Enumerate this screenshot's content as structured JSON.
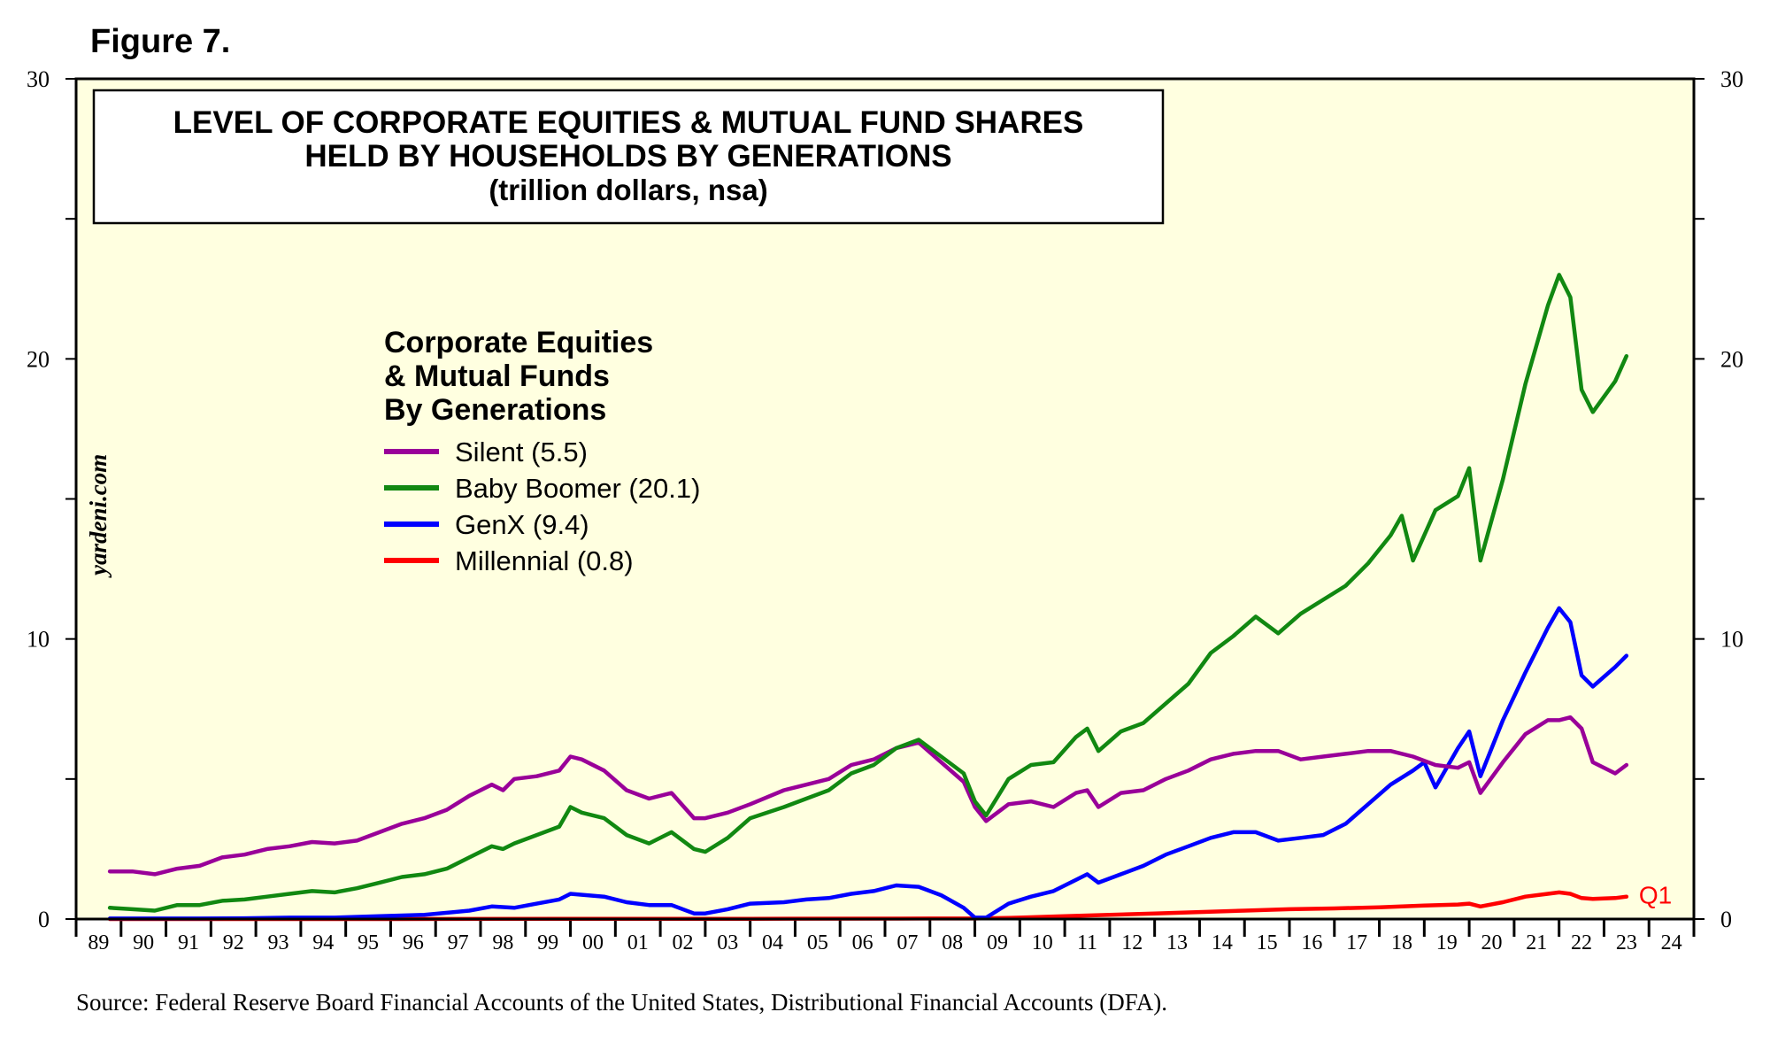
{
  "figure_label": "Figure 7.",
  "source": "Source: Federal Reserve Board Financial Accounts of the United States, Distributional Financial Accounts (DFA).",
  "watermark": "yardeni.com",
  "colors": {
    "background": "#ffffe0",
    "silent": "#990099",
    "baby_boomer": "#118811",
    "genx": "#0000ff",
    "millennial": "#ff0000"
  },
  "chart_data": {
    "type": "line",
    "title_lines": [
      "LEVEL OF CORPORATE EQUITIES & MUTUAL FUND SHARES",
      "HELD BY HOUSEHOLDS BY GENERATIONS",
      "(trillion dollars, nsa)"
    ],
    "legend_title_lines": [
      "Corporate Equities",
      "& Mutual Funds",
      "By Generations"
    ],
    "legend_position": "upper-left",
    "ylim": [
      0,
      30
    ],
    "y_ticks": [
      0,
      10,
      20,
      30
    ],
    "y_tick_labels": [
      "0",
      "10",
      "20",
      "30"
    ],
    "x_range": [
      1989,
      2025
    ],
    "x_tick_labels": [
      "89",
      "90",
      "91",
      "92",
      "93",
      "94",
      "95",
      "96",
      "97",
      "98",
      "99",
      "00",
      "01",
      "02",
      "03",
      "04",
      "05",
      "06",
      "07",
      "08",
      "09",
      "10",
      "11",
      "12",
      "13",
      "14",
      "15",
      "16",
      "17",
      "18",
      "19",
      "20",
      "21",
      "22",
      "23",
      "24"
    ],
    "end_annotation": "Q1",
    "series": [
      {
        "name": "Silent",
        "legend_label": "Silent (5.5)",
        "color": "#990099",
        "x": [
          1989.75,
          1990.25,
          1990.75,
          1991.25,
          1991.75,
          1992.25,
          1992.75,
          1993.25,
          1993.75,
          1994.25,
          1994.75,
          1995.25,
          1995.75,
          1996.25,
          1996.75,
          1997.25,
          1997.75,
          1998.25,
          1998.5,
          1998.75,
          1999.25,
          1999.75,
          2000.0,
          2000.25,
          2000.75,
          2001.25,
          2001.75,
          2002.25,
          2002.75,
          2003.0,
          2003.5,
          2004.0,
          2004.75,
          2005.25,
          2005.75,
          2006.25,
          2006.75,
          2007.25,
          2007.75,
          2008.25,
          2008.75,
          2009.0,
          2009.25,
          2009.75,
          2010.25,
          2010.75,
          2011.25,
          2011.5,
          2011.75,
          2012.25,
          2012.75,
          2013.25,
          2013.75,
          2014.25,
          2014.75,
          2015.25,
          2015.75,
          2016.25,
          2016.75,
          2017.25,
          2017.75,
          2018.25,
          2018.75,
          2019.25,
          2019.75,
          2020.0,
          2020.25,
          2020.75,
          2021.25,
          2021.75,
          2022.0,
          2022.25,
          2022.5,
          2022.75,
          2023.25,
          2023.5
        ],
        "values": [
          1.7,
          1.7,
          1.6,
          1.8,
          1.9,
          2.2,
          2.3,
          2.5,
          2.6,
          2.75,
          2.7,
          2.8,
          3.1,
          3.4,
          3.6,
          3.9,
          4.4,
          4.8,
          4.6,
          5.0,
          5.1,
          5.3,
          5.8,
          5.7,
          5.3,
          4.6,
          4.3,
          4.5,
          3.6,
          3.6,
          3.8,
          4.1,
          4.6,
          4.8,
          5.0,
          5.5,
          5.7,
          6.1,
          6.3,
          5.6,
          4.9,
          4.0,
          3.5,
          4.1,
          4.2,
          4.0,
          4.5,
          4.6,
          4.0,
          4.5,
          4.6,
          5.0,
          5.3,
          5.7,
          5.9,
          6.0,
          6.0,
          5.7,
          5.8,
          5.9,
          6.0,
          6.0,
          5.8,
          5.5,
          5.4,
          5.6,
          4.5,
          5.6,
          6.6,
          7.1,
          7.1,
          7.2,
          6.8,
          5.6,
          5.2,
          5.5
        ]
      },
      {
        "name": "Baby Boomer",
        "legend_label": "Baby Boomer (20.1)",
        "color": "#118811",
        "x": [
          1989.75,
          1990.25,
          1990.75,
          1991.25,
          1991.75,
          1992.25,
          1992.75,
          1993.25,
          1993.75,
          1994.25,
          1994.75,
          1995.25,
          1995.75,
          1996.25,
          1996.75,
          1997.25,
          1997.75,
          1998.25,
          1998.5,
          1998.75,
          1999.25,
          1999.75,
          2000.0,
          2000.25,
          2000.75,
          2001.25,
          2001.75,
          2002.25,
          2002.75,
          2003.0,
          2003.5,
          2004.0,
          2004.75,
          2005.25,
          2005.75,
          2006.25,
          2006.75,
          2007.25,
          2007.75,
          2008.25,
          2008.75,
          2009.0,
          2009.25,
          2009.75,
          2010.25,
          2010.75,
          2011.25,
          2011.5,
          2011.75,
          2012.25,
          2012.75,
          2013.25,
          2013.75,
          2014.25,
          2014.75,
          2015.25,
          2015.75,
          2016.25,
          2016.75,
          2017.25,
          2017.75,
          2018.25,
          2018.5,
          2018.75,
          2019.25,
          2019.75,
          2020.0,
          2020.25,
          2020.75,
          2021.25,
          2021.75,
          2022.0,
          2022.25,
          2022.5,
          2022.75,
          2023.25,
          2023.5
        ],
        "values": [
          0.4,
          0.35,
          0.3,
          0.5,
          0.5,
          0.65,
          0.7,
          0.8,
          0.9,
          1.0,
          0.95,
          1.1,
          1.3,
          1.5,
          1.6,
          1.8,
          2.2,
          2.6,
          2.5,
          2.7,
          3.0,
          3.3,
          4.0,
          3.8,
          3.6,
          3.0,
          2.7,
          3.1,
          2.5,
          2.4,
          2.9,
          3.6,
          4.0,
          4.3,
          4.6,
          5.2,
          5.5,
          6.1,
          6.4,
          5.8,
          5.2,
          4.2,
          3.7,
          5.0,
          5.5,
          5.6,
          6.5,
          6.8,
          6.0,
          6.7,
          7.0,
          7.7,
          8.4,
          9.5,
          10.1,
          10.8,
          10.2,
          10.9,
          11.4,
          11.9,
          12.7,
          13.7,
          14.4,
          12.8,
          14.6,
          15.1,
          16.1,
          12.8,
          15.7,
          19.1,
          21.9,
          23.0,
          22.2,
          18.9,
          18.1,
          19.2,
          20.1
        ]
      },
      {
        "name": "GenX",
        "legend_label": "GenX (9.4)",
        "color": "#0000ff",
        "x": [
          1989.75,
          1990.75,
          1991.75,
          1992.75,
          1993.75,
          1994.75,
          1995.75,
          1996.75,
          1997.75,
          1998.25,
          1998.75,
          1999.25,
          1999.75,
          2000.0,
          2000.75,
          2001.25,
          2001.75,
          2002.25,
          2002.75,
          2003.0,
          2003.5,
          2004.0,
          2004.75,
          2005.25,
          2005.75,
          2006.25,
          2006.75,
          2007.25,
          2007.75,
          2008.25,
          2008.75,
          2009.0,
          2009.25,
          2009.75,
          2010.25,
          2010.75,
          2011.25,
          2011.5,
          2011.75,
          2012.25,
          2012.75,
          2013.25,
          2013.75,
          2014.25,
          2014.75,
          2015.25,
          2015.75,
          2016.25,
          2016.75,
          2017.25,
          2017.75,
          2018.25,
          2018.75,
          2019.0,
          2019.25,
          2019.75,
          2020.0,
          2020.25,
          2020.75,
          2021.25,
          2021.75,
          2022.0,
          2022.25,
          2022.5,
          2022.75,
          2023.25,
          2023.5
        ],
        "values": [
          0.02,
          0.02,
          0.02,
          0.03,
          0.05,
          0.05,
          0.1,
          0.15,
          0.3,
          0.45,
          0.4,
          0.55,
          0.7,
          0.9,
          0.8,
          0.6,
          0.5,
          0.5,
          0.2,
          0.2,
          0.35,
          0.55,
          0.6,
          0.7,
          0.75,
          0.9,
          1.0,
          1.2,
          1.15,
          0.85,
          0.4,
          0.05,
          0.05,
          0.55,
          0.8,
          1.0,
          1.4,
          1.6,
          1.3,
          1.6,
          1.9,
          2.3,
          2.6,
          2.9,
          3.1,
          3.1,
          2.8,
          2.9,
          3.0,
          3.4,
          4.1,
          4.8,
          5.3,
          5.6,
          4.7,
          6.1,
          6.7,
          5.1,
          7.1,
          8.8,
          10.4,
          11.1,
          10.6,
          8.7,
          8.3,
          9.0,
          9.4
        ]
      },
      {
        "name": "Millennial",
        "legend_label": "Millennial (0.8)",
        "color": "#ff0000",
        "x": [
          1989.75,
          1996.0,
          2000.0,
          2004.0,
          2008.0,
          2009.0,
          2010.0,
          2011.0,
          2012.0,
          2013.0,
          2014.0,
          2015.0,
          2016.0,
          2017.0,
          2018.0,
          2019.0,
          2019.75,
          2020.0,
          2020.25,
          2020.75,
          2021.25,
          2021.75,
          2022.0,
          2022.25,
          2022.5,
          2022.75,
          2023.25,
          2023.5
        ],
        "values": [
          0.0,
          0.0,
          0.01,
          0.01,
          0.02,
          0.02,
          0.05,
          0.1,
          0.15,
          0.2,
          0.25,
          0.3,
          0.35,
          0.38,
          0.42,
          0.48,
          0.52,
          0.55,
          0.45,
          0.6,
          0.8,
          0.9,
          0.95,
          0.9,
          0.75,
          0.72,
          0.75,
          0.8
        ]
      }
    ]
  }
}
